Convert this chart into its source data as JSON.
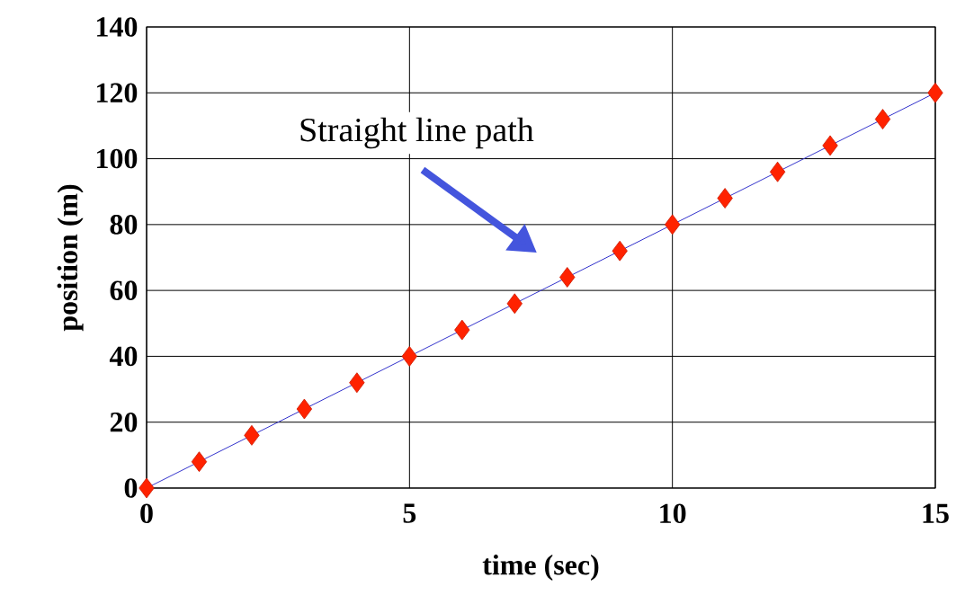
{
  "chart_data": {
    "type": "line",
    "xlabel": "time (sec)",
    "ylabel": "position (m)",
    "x": [
      0,
      1,
      2,
      3,
      4,
      5,
      6,
      7,
      8,
      9,
      10,
      11,
      12,
      13,
      14,
      15
    ],
    "series": [
      {
        "color": "#ff2200",
        "values": [
          0,
          8,
          16,
          24,
          32,
          40,
          48,
          56,
          64,
          72,
          80,
          88,
          96,
          104,
          112,
          120
        ]
      }
    ],
    "xlim": [
      0,
      15
    ],
    "ylim": [
      0,
      140
    ],
    "xticks": [
      0,
      5,
      10,
      15
    ],
    "yticks": [
      0,
      20,
      40,
      60,
      80,
      100,
      120,
      140
    ],
    "grid": true,
    "marker": "diamond",
    "line_style": "solid",
    "annotations": [
      "Straight line path"
    ]
  }
}
